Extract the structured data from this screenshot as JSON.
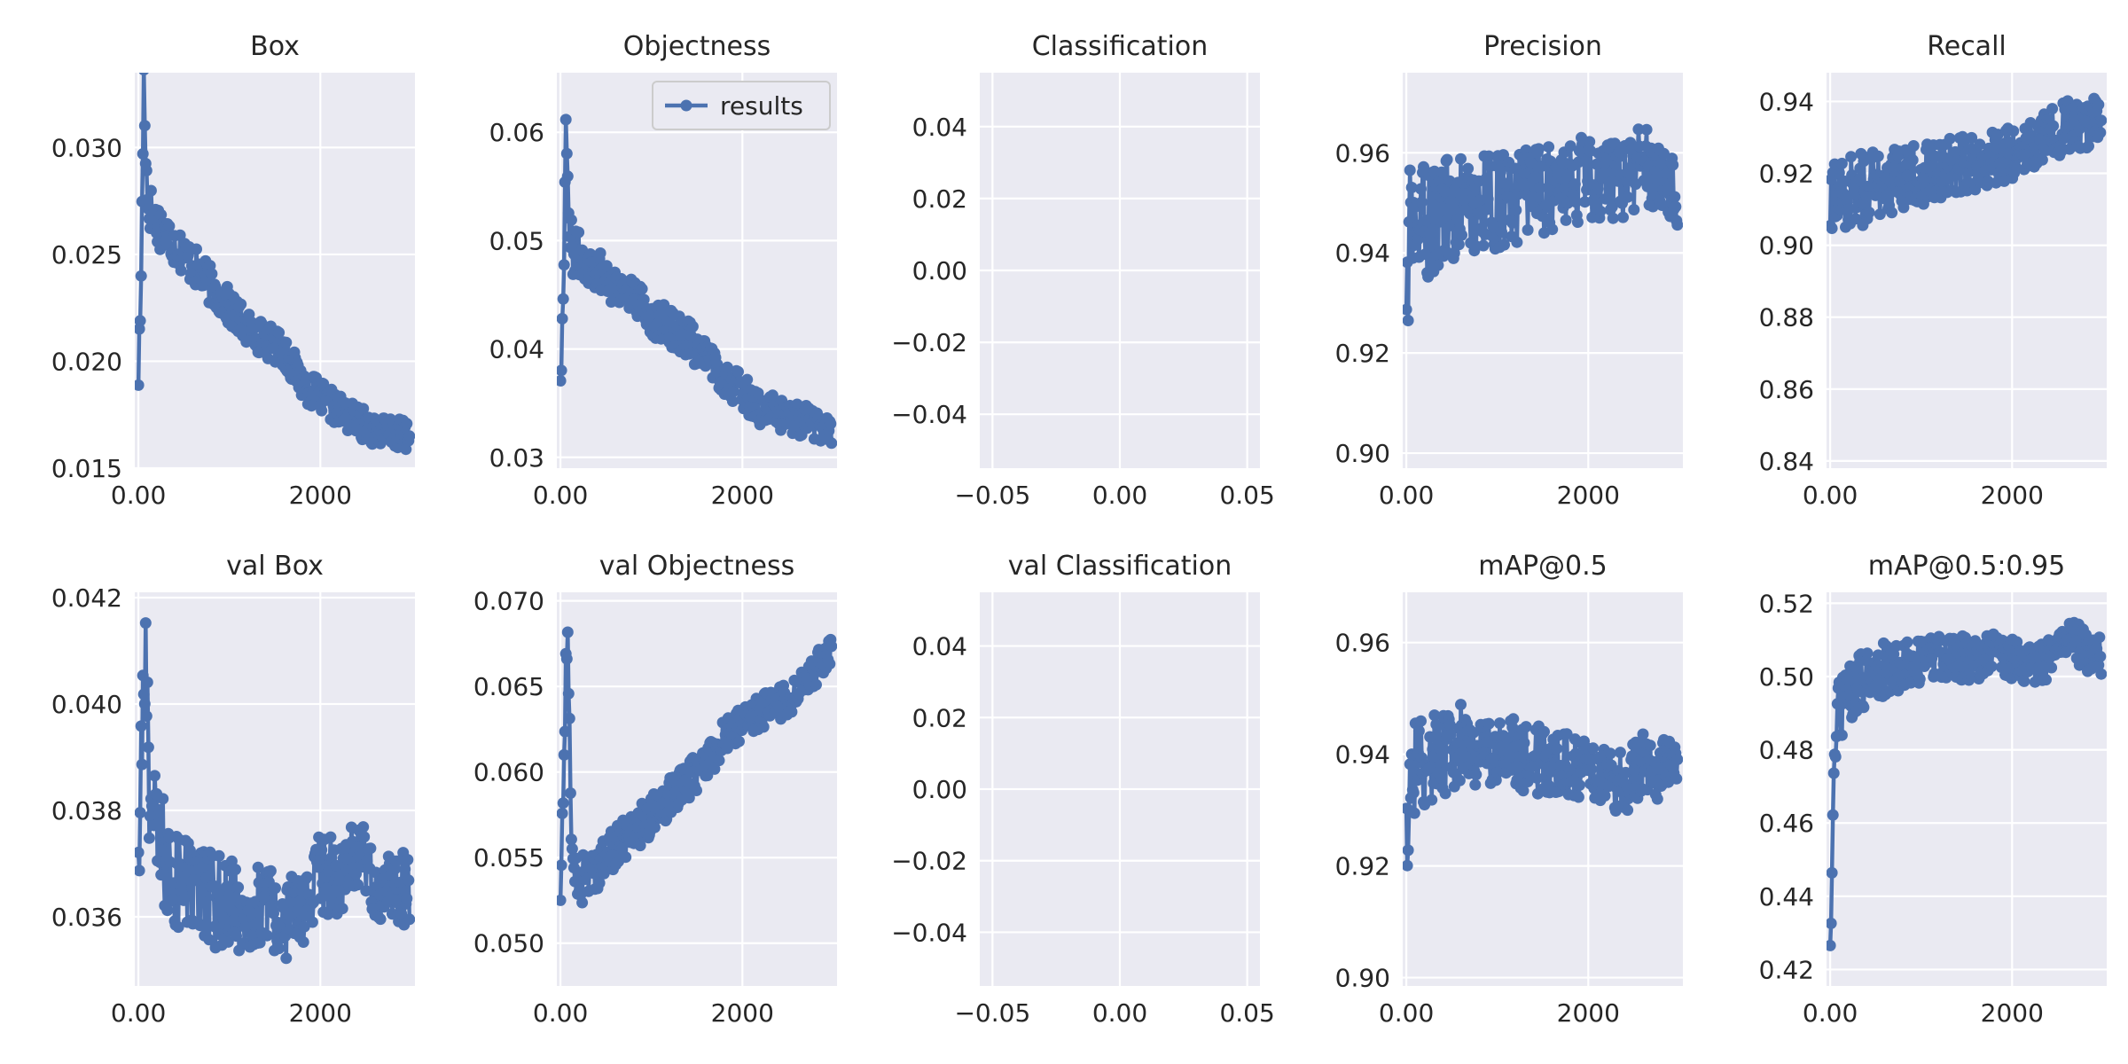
{
  "chart_data": [
    {
      "type": "line",
      "title": "Box",
      "xlim": [
        -40,
        3040
      ],
      "ylim": [
        0.015,
        0.0335
      ],
      "xticks": [
        0,
        2000
      ],
      "yticks": [
        0.015,
        0.02,
        0.025,
        0.03
      ],
      "tick_format": 3,
      "x": [
        0,
        20,
        40,
        60,
        80,
        100,
        150,
        200,
        300,
        400,
        500,
        600,
        800,
        1000,
        1200,
        1400,
        1600,
        1800,
        2000,
        2200,
        2400,
        2600,
        2800,
        2980
      ],
      "y": [
        0.0195,
        0.022,
        0.027,
        0.0333,
        0.03,
        0.0275,
        0.027,
        0.0265,
        0.026,
        0.0255,
        0.025,
        0.0245,
        0.0235,
        0.0225,
        0.0215,
        0.021,
        0.0205,
        0.019,
        0.0183,
        0.0177,
        0.0172,
        0.0168,
        0.0166,
        0.0165
      ],
      "noise": 0.0012,
      "legend": null
    },
    {
      "type": "line",
      "title": "Objectness",
      "xlim": [
        -40,
        3040
      ],
      "ylim": [
        0.029,
        0.0655
      ],
      "xticks": [
        0,
        2000
      ],
      "yticks": [
        0.03,
        0.04,
        0.05,
        0.06
      ],
      "tick_format": 2,
      "x": [
        0,
        20,
        40,
        60,
        80,
        100,
        150,
        200,
        300,
        400,
        600,
        800,
        1000,
        1200,
        1400,
        1600,
        1800,
        2000,
        2200,
        2400,
        2600,
        2800,
        2980
      ],
      "y": [
        0.038,
        0.042,
        0.048,
        0.0635,
        0.055,
        0.05,
        0.049,
        0.0485,
        0.048,
        0.0475,
        0.046,
        0.045,
        0.043,
        0.042,
        0.041,
        0.039,
        0.0375,
        0.036,
        0.0345,
        0.034,
        0.0335,
        0.033,
        0.0328
      ],
      "noise": 0.0025,
      "legend": {
        "label": "results"
      }
    },
    {
      "type": "line",
      "title": "Classification",
      "xlim": [
        -0.055,
        0.055
      ],
      "ylim": [
        -0.055,
        0.055
      ],
      "xticks": [
        -0.05,
        0.0,
        0.05
      ],
      "yticks": [
        -0.04,
        -0.02,
        0.0,
        0.02,
        0.04
      ],
      "tick_format": 2,
      "x": [],
      "y": [],
      "noise": 0,
      "legend": null
    },
    {
      "type": "line",
      "title": "Precision",
      "xlim": [
        -40,
        3040
      ],
      "ylim": [
        0.897,
        0.976
      ],
      "xticks": [
        0,
        2000
      ],
      "yticks": [
        0.9,
        0.92,
        0.94,
        0.96
      ],
      "tick_format": 2,
      "x": [
        0,
        40,
        100,
        200,
        400,
        600,
        800,
        1000,
        1200,
        1400,
        1600,
        1800,
        2000,
        2200,
        2400,
        2600,
        2800,
        2980
      ],
      "y": [
        0.93,
        0.945,
        0.945,
        0.946,
        0.948,
        0.949,
        0.95,
        0.95,
        0.951,
        0.952,
        0.953,
        0.954,
        0.955,
        0.955,
        0.955,
        0.958,
        0.956,
        0.953
      ],
      "noise": 0.013,
      "legend": null
    },
    {
      "type": "line",
      "title": "Recall",
      "xlim": [
        -40,
        3040
      ],
      "ylim": [
        0.838,
        0.948
      ],
      "xticks": [
        0,
        2000
      ],
      "yticks": [
        0.84,
        0.86,
        0.88,
        0.9,
        0.92,
        0.94
      ],
      "tick_format": 2,
      "x": [
        0,
        40,
        100,
        200,
        400,
        600,
        800,
        1000,
        1200,
        1400,
        1600,
        1800,
        2000,
        2200,
        2400,
        2600,
        2800,
        2980
      ],
      "y": [
        0.905,
        0.915,
        0.915,
        0.915,
        0.916,
        0.918,
        0.918,
        0.92,
        0.921,
        0.922,
        0.923,
        0.925,
        0.926,
        0.928,
        0.93,
        0.933,
        0.934,
        0.934
      ],
      "noise": 0.012,
      "legend": null
    },
    {
      "type": "line",
      "title": "val Box",
      "xlim": [
        -40,
        3040
      ],
      "ylim": [
        0.0347,
        0.0421
      ],
      "xticks": [
        0,
        2000
      ],
      "yticks": [
        0.036,
        0.038,
        0.04,
        0.042
      ],
      "tick_format": 3,
      "x": [
        0,
        40,
        80,
        120,
        200,
        300,
        400,
        600,
        800,
        1000,
        1200,
        1400,
        1600,
        1800,
        2000,
        2200,
        2400,
        2600,
        2800,
        2980
      ],
      "y": [
        0.037,
        0.039,
        0.041,
        0.0385,
        0.0375,
        0.037,
        0.0368,
        0.0365,
        0.0363,
        0.0362,
        0.0362,
        0.0361,
        0.036,
        0.036,
        0.0368,
        0.0368,
        0.0372,
        0.0366,
        0.0365,
        0.0366
      ],
      "noise": 0.0012,
      "legend": null
    },
    {
      "type": "line",
      "title": "val Objectness",
      "xlim": [
        -40,
        3040
      ],
      "ylim": [
        0.0475,
        0.0705
      ],
      "xticks": [
        0,
        2000
      ],
      "yticks": [
        0.05,
        0.055,
        0.06,
        0.065,
        0.07
      ],
      "tick_format": 3,
      "x": [
        0,
        40,
        80,
        120,
        200,
        300,
        400,
        600,
        800,
        1000,
        1200,
        1400,
        1600,
        1800,
        2000,
        2200,
        2400,
        2600,
        2800,
        2980
      ],
      "y": [
        0.052,
        0.062,
        0.069,
        0.055,
        0.0535,
        0.054,
        0.0545,
        0.0555,
        0.0565,
        0.0575,
        0.0585,
        0.0595,
        0.0605,
        0.062,
        0.063,
        0.0635,
        0.064,
        0.0645,
        0.066,
        0.0672
      ],
      "noise": 0.0016,
      "legend": null
    },
    {
      "type": "line",
      "title": "val Classification",
      "xlim": [
        -0.055,
        0.055
      ],
      "ylim": [
        -0.055,
        0.055
      ],
      "xticks": [
        -0.05,
        0.0,
        0.05
      ],
      "yticks": [
        -0.04,
        -0.02,
        0.0,
        0.02,
        0.04
      ],
      "tick_format": 2,
      "x": [],
      "y": [],
      "noise": 0,
      "legend": null
    },
    {
      "type": "line",
      "title": "mAP@0.5",
      "xlim": [
        -40,
        3040
      ],
      "ylim": [
        0.8985,
        0.969
      ],
      "xticks": [
        0,
        2000
      ],
      "yticks": [
        0.9,
        0.92,
        0.94,
        0.96
      ],
      "tick_format": 2,
      "x": [
        0,
        40,
        100,
        200,
        400,
        600,
        800,
        1000,
        1200,
        1400,
        1600,
        1800,
        2000,
        2200,
        2400,
        2600,
        2800,
        2980
      ],
      "y": [
        0.925,
        0.935,
        0.938,
        0.939,
        0.94,
        0.942,
        0.941,
        0.94,
        0.94,
        0.939,
        0.939,
        0.938,
        0.938,
        0.936,
        0.935,
        0.938,
        0.937,
        0.938
      ],
      "noise": 0.009,
      "legend": null
    },
    {
      "type": "line",
      "title": "mAP@0.5:0.95",
      "xlim": [
        -40,
        3040
      ],
      "ylim": [
        0.4155,
        0.523
      ],
      "xticks": [
        0,
        2000
      ],
      "yticks": [
        0.42,
        0.44,
        0.46,
        0.48,
        0.5,
        0.52
      ],
      "tick_format": 2,
      "x": [
        0,
        20,
        40,
        60,
        100,
        200,
        400,
        600,
        800,
        1000,
        1200,
        1400,
        1600,
        1800,
        2000,
        2200,
        2400,
        2600,
        2800,
        2980
      ],
      "y": [
        0.42,
        0.45,
        0.475,
        0.485,
        0.49,
        0.495,
        0.5,
        0.502,
        0.503,
        0.504,
        0.505,
        0.505,
        0.505,
        0.506,
        0.505,
        0.503,
        0.505,
        0.512,
        0.507,
        0.505
      ],
      "noise": 0.009,
      "legend": null
    }
  ]
}
